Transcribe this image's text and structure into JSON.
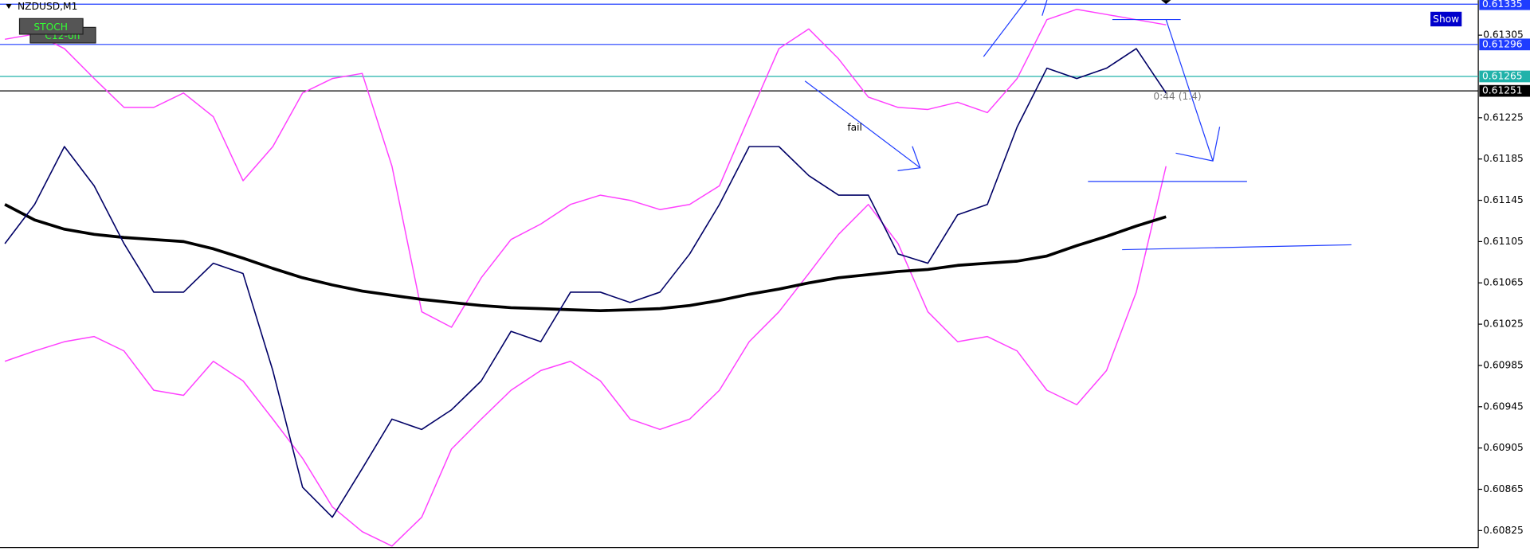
{
  "chart_data": {
    "type": "line",
    "title": "NZDUSD,M1",
    "buttons": [
      "STOCH",
      "C12-on",
      "Show"
    ],
    "annotations": [
      "fail",
      "0:44 (1.4)"
    ],
    "ylim": [
      0.6081,
      0.61339
    ],
    "yticks": [
      0.61305,
      0.61225,
      0.61185,
      0.61145,
      0.61105,
      0.61065,
      0.61025,
      0.60985,
      0.60945,
      0.60905,
      0.60865,
      0.60825
    ],
    "levels": [
      {
        "value": 0.61335,
        "color": "#1e3cff"
      },
      {
        "value": 0.61296,
        "color": "#1e3cff"
      },
      {
        "value": 0.61265,
        "color": "#20b2aa"
      },
      {
        "value": 0.61251,
        "color": "#000000"
      }
    ],
    "series": [
      {
        "color": "#ff40ff",
        "width": 1.2,
        "values": [
          0.61301,
          0.61306,
          0.61292,
          0.61263,
          0.61235,
          0.61235,
          0.61249,
          0.61226,
          0.61164,
          0.61197,
          0.61249,
          0.61263,
          0.61268,
          0.61178,
          0.61037,
          0.61022,
          0.6107,
          0.61107,
          0.61122,
          0.61141,
          0.6115,
          0.61145,
          0.61136,
          0.61141,
          0.61159,
          0.61226,
          0.61292,
          0.61311,
          0.61282,
          0.61245,
          0.61235,
          0.61233,
          0.6124,
          0.6123,
          0.61263,
          0.6132,
          0.6133,
          0.61325,
          0.6132,
          0.61315
        ]
      },
      {
        "color": "#ff40ff",
        "width": 1.2,
        "values": [
          0.60989,
          0.60999,
          0.61008,
          0.61013,
          0.60999,
          0.60961,
          0.60956,
          0.60989,
          0.6097,
          0.60933,
          0.60895,
          0.60848,
          0.60824,
          0.6081,
          0.60838,
          0.60904,
          0.60933,
          0.60961,
          0.6098,
          0.60989,
          0.6097,
          0.60933,
          0.60923,
          0.60933,
          0.60961,
          0.61008,
          0.61037,
          0.61074,
          0.61112,
          0.61141,
          0.61103,
          0.61037,
          0.61008,
          0.61013,
          0.60999,
          0.60961,
          0.60947,
          0.6098,
          0.61056,
          0.61178
        ]
      },
      {
        "color": "#000000",
        "width": 3,
        "values": [
          0.61141,
          0.61126,
          0.61117,
          0.61112,
          0.61109,
          0.61107,
          0.61105,
          0.61098,
          0.61089,
          0.61079,
          0.6107,
          0.61063,
          0.61057,
          0.61053,
          0.61049,
          0.61046,
          0.61043,
          0.61041,
          0.6104,
          0.61039,
          0.61038,
          0.61039,
          0.6104,
          0.61043,
          0.61048,
          0.61054,
          0.61059,
          0.61065,
          0.6107,
          0.61073,
          0.61076,
          0.61078,
          0.61082,
          0.61084,
          0.61086,
          0.61091,
          0.61101,
          0.6111,
          0.6112,
          0.61129
        ]
      },
      {
        "color": "#000066",
        "width": 1.3,
        "values": [
          0.61103,
          0.61141,
          0.61197,
          0.61159,
          0.61103,
          0.61056,
          0.61056,
          0.61084,
          0.61074,
          0.6098,
          0.60867,
          0.60838,
          0.60885,
          0.60933,
          0.60923,
          0.60942,
          0.6097,
          0.61018,
          0.61008,
          0.61056,
          0.61056,
          0.61046,
          0.61056,
          0.61093,
          0.61141,
          0.61197,
          0.61197,
          0.61169,
          0.6115,
          0.6115,
          0.61093,
          0.61084,
          0.61131,
          0.61141,
          0.61216,
          0.61273,
          0.61263,
          0.61273,
          0.61292,
          0.61249
        ]
      }
    ]
  }
}
